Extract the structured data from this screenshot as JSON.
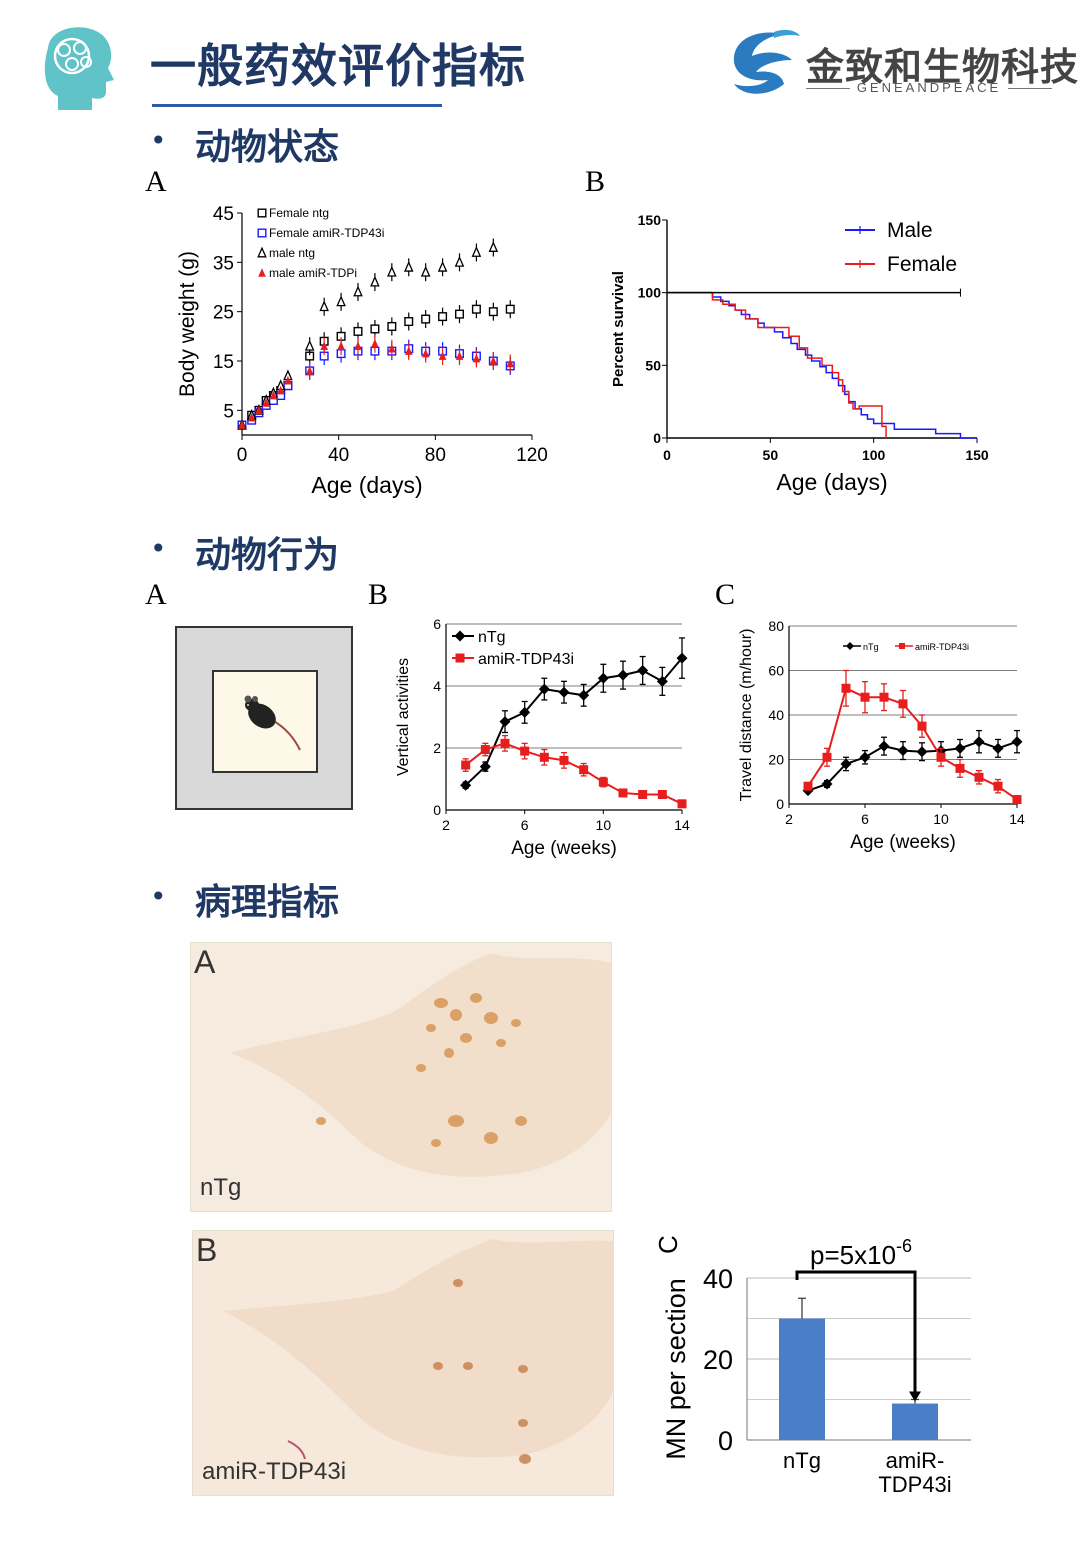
{
  "header": {
    "title": "一般药效评价指标",
    "brand_name": "金致和生物科技",
    "brand_sub": "GENEANDPEACE",
    "accent": "#1f3864"
  },
  "sections": [
    {
      "title": "动物状态",
      "bullet": "•"
    },
    {
      "title": "动物行为",
      "bullet": "•"
    },
    {
      "title": "病理指标",
      "bullet": "•"
    }
  ],
  "panel_labels": {
    "state_a": "A",
    "state_b": "B",
    "behavior_a": "A",
    "behavior_b": "B",
    "behavior_c": "C",
    "histo_a": "A",
    "histo_b": "B",
    "histo_c": "C"
  },
  "histology": {
    "a_label": "nTg",
    "b_label": "amiR-TDP43i",
    "stain_color": "#c88a55",
    "background_color": "#f3e3d2"
  },
  "open_field_icon": "mouse-in-open-field-icon",
  "chart_data": [
    {
      "id": "body-weight",
      "type": "scatter",
      "xlabel": "Age (days)",
      "ylabel": "Body weight (g)",
      "xlim": [
        0,
        120
      ],
      "ylim": [
        0,
        45
      ],
      "xticks": [
        0,
        40,
        80,
        120
      ],
      "yticks": [
        5,
        15,
        25,
        35,
        45
      ],
      "legend_position": "top-left",
      "series": [
        {
          "name": "Female ntg",
          "marker": "open-square",
          "color": "#000000",
          "x": [
            0,
            4,
            7,
            10,
            13,
            16,
            19,
            28,
            34,
            41,
            48,
            55,
            62,
            69,
            76,
            83,
            90,
            97,
            104,
            111
          ],
          "y": [
            2,
            4,
            5,
            7,
            8,
            9,
            10,
            16,
            19,
            20,
            21,
            21.5,
            22,
            23,
            23.5,
            24,
            24.5,
            25.5,
            25,
            25.5
          ]
        },
        {
          "name": "Female amiR-TDP43i",
          "marker": "open-square",
          "color": "#1a1aff",
          "x": [
            0,
            4,
            7,
            10,
            13,
            16,
            19,
            28,
            34,
            41,
            48,
            55,
            62,
            69,
            76,
            83,
            90,
            97,
            104,
            111
          ],
          "y": [
            2,
            3,
            4.5,
            6,
            7,
            8,
            10,
            13,
            16,
            16.5,
            17,
            17,
            17,
            17.5,
            17,
            17,
            16.5,
            16,
            15,
            14
          ]
        },
        {
          "name": "male ntg",
          "marker": "open-triangle",
          "color": "#000000",
          "x": [
            0,
            4,
            7,
            10,
            13,
            16,
            19,
            28,
            34,
            41,
            48,
            55,
            62,
            69,
            76,
            83,
            90,
            97,
            104
          ],
          "y": [
            2,
            4,
            5,
            7,
            8.5,
            10,
            12,
            18,
            26,
            27,
            29,
            31,
            33,
            34,
            33,
            34,
            35,
            37,
            38
          ]
        },
        {
          "name": "male amiR-TDPi",
          "marker": "filled-triangle",
          "color": "#e81e1e",
          "x": [
            0,
            4,
            7,
            10,
            13,
            16,
            19,
            28,
            34,
            41,
            48,
            55,
            62,
            69,
            76,
            83,
            90,
            97,
            104,
            111
          ],
          "y": [
            2,
            3.5,
            5,
            6.5,
            8,
            9,
            11,
            13,
            18,
            18,
            18,
            18.5,
            17.5,
            17,
            16.5,
            16,
            16,
            15.5,
            15,
            14.5
          ]
        }
      ]
    },
    {
      "id": "survival",
      "type": "line",
      "xlabel": "Age (days)",
      "ylabel": "Percent survival",
      "xlim": [
        0,
        150
      ],
      "ylim": [
        0,
        150
      ],
      "xticks": [
        0,
        50,
        100,
        150
      ],
      "yticks": [
        0,
        50,
        100,
        150
      ],
      "legend_position": "top-right",
      "series": [
        {
          "name": "Male",
          "color": "#1a1aff",
          "step": true,
          "x": [
            0,
            18,
            22,
            26,
            30,
            33,
            36,
            40,
            44,
            47,
            52,
            56,
            60,
            63,
            67,
            70,
            74,
            77,
            80,
            83,
            86,
            88,
            91,
            94,
            97,
            100,
            110,
            130,
            142,
            150
          ],
          "y": [
            100,
            100,
            97,
            94,
            91,
            88,
            85,
            82,
            79,
            76,
            73,
            69,
            65,
            61,
            57,
            53,
            49,
            45,
            41,
            36,
            30,
            25,
            20,
            16,
            13,
            10,
            6,
            3,
            0,
            0
          ]
        },
        {
          "name": "Female",
          "color": "#e81e1e",
          "step": true,
          "x": [
            0,
            18,
            22,
            27,
            33,
            38,
            44,
            55,
            59,
            64,
            68,
            75,
            80,
            83,
            85,
            88,
            90,
            93,
            102,
            104,
            106
          ],
          "y": [
            100,
            100,
            95,
            92,
            88,
            82,
            76,
            76,
            70,
            62,
            55,
            50,
            45,
            40,
            32,
            24,
            20,
            22,
            22,
            8,
            0
          ]
        },
        {
          "name": "",
          "color": "#000000",
          "step": true,
          "x": [
            0,
            142
          ],
          "y": [
            100,
            100
          ]
        }
      ]
    },
    {
      "id": "vertical-activities",
      "type": "line",
      "xlabel": "Age (weeks)",
      "ylabel": "Vertical activities",
      "xlim": [
        2,
        14
      ],
      "ylim": [
        0,
        6
      ],
      "xticks": [
        2,
        6,
        10,
        14
      ],
      "yticks": [
        0,
        2,
        4,
        6
      ],
      "legend_position": "top-left",
      "grid": true,
      "series": [
        {
          "name": "nTg",
          "marker": "diamond",
          "color": "#000000",
          "x": [
            3,
            4,
            5,
            6,
            7,
            8,
            9,
            10,
            11,
            12,
            13,
            14
          ],
          "y": [
            0.8,
            1.4,
            2.85,
            3.15,
            3.9,
            3.8,
            3.7,
            4.25,
            4.35,
            4.5,
            4.15,
            4.9
          ],
          "err": [
            0.1,
            0.15,
            0.35,
            0.35,
            0.35,
            0.35,
            0.35,
            0.45,
            0.45,
            0.45,
            0.45,
            0.65
          ]
        },
        {
          "name": "amiR-TDP43i",
          "marker": "square",
          "color": "#e81e1e",
          "x": [
            3,
            4,
            5,
            6,
            7,
            8,
            9,
            10,
            11,
            12,
            13,
            14
          ],
          "y": [
            1.45,
            1.95,
            2.15,
            1.9,
            1.7,
            1.6,
            1.3,
            0.9,
            0.55,
            0.5,
            0.5,
            0.2
          ],
          "err": [
            0.2,
            0.2,
            0.25,
            0.25,
            0.25,
            0.25,
            0.2,
            0.15,
            0.1,
            0.1,
            0.1,
            0.05
          ]
        }
      ]
    },
    {
      "id": "travel-distance",
      "type": "line",
      "xlabel": "Age (weeks)",
      "ylabel": "Travel distance (m/hour)",
      "xlim": [
        2,
        14
      ],
      "ylim": [
        0,
        80
      ],
      "xticks": [
        2,
        6,
        10,
        14
      ],
      "yticks": [
        0,
        20,
        40,
        60,
        80
      ],
      "legend_position": "top",
      "grid": true,
      "series": [
        {
          "name": "nTg",
          "marker": "diamond",
          "color": "#000000",
          "x": [
            3,
            4,
            5,
            6,
            7,
            8,
            9,
            10,
            11,
            12,
            13,
            14
          ],
          "y": [
            6,
            9,
            18,
            21,
            26,
            24,
            23.5,
            24,
            25,
            28,
            25,
            28
          ],
          "err": [
            1,
            1.5,
            3,
            3,
            4,
            4,
            4,
            4,
            4,
            5,
            4,
            5
          ]
        },
        {
          "name": "amiR-TDP43i",
          "marker": "square",
          "color": "#e81e1e",
          "x": [
            3,
            4,
            5,
            6,
            7,
            8,
            9,
            10,
            11,
            12,
            13,
            14
          ],
          "y": [
            8,
            21,
            52,
            48,
            48,
            45,
            35,
            21,
            16,
            12,
            8,
            2
          ],
          "err": [
            1,
            4,
            8,
            7,
            6,
            6,
            5,
            4,
            4,
            3,
            3,
            1
          ]
        }
      ]
    },
    {
      "id": "mn-per-section",
      "type": "bar",
      "ylabel": "MN per section",
      "categories": [
        "nTg",
        "amiR-TDP43i"
      ],
      "category_lines": [
        [
          "nTg"
        ],
        [
          "amiR-",
          "TDP43i"
        ]
      ],
      "values": [
        30,
        9
      ],
      "errors": [
        5,
        1
      ],
      "ylim": [
        0,
        40
      ],
      "yticks": [
        0,
        20,
        40
      ],
      "bar_color": "#4a7ec6",
      "annotation": {
        "text_base": "p=5x10",
        "text_exp": "-6"
      }
    }
  ]
}
